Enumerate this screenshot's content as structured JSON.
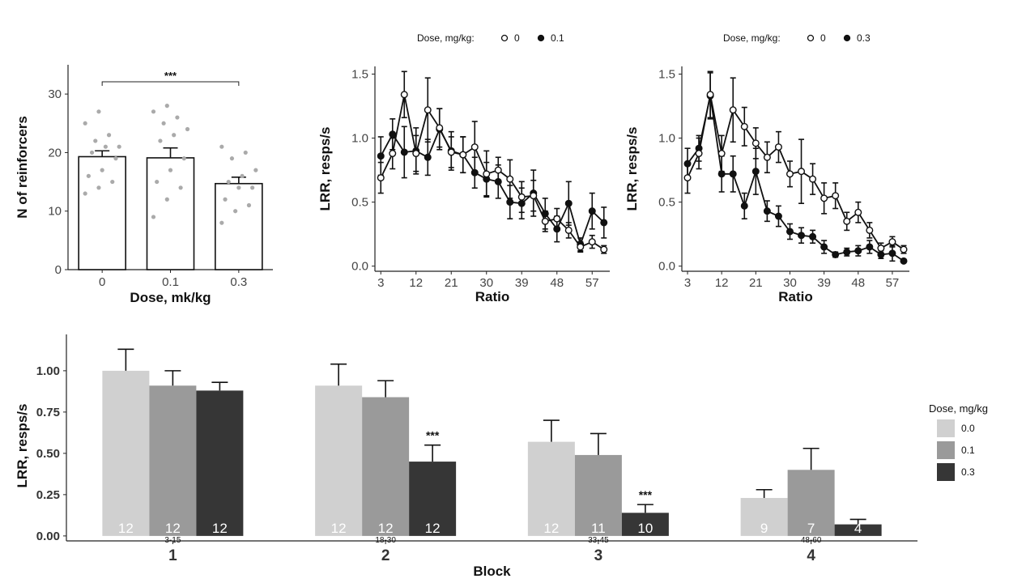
{
  "chart_data": [
    {
      "id": "reinforcers",
      "type": "bar",
      "title": "",
      "xlabel": "Dose, mk/kg",
      "ylabel": "N of reinforcers",
      "ylim": [
        0,
        35
      ],
      "yticks": [
        "0",
        "10",
        "20",
        "30"
      ],
      "categories": [
        "0",
        "0.1",
        "0.3"
      ],
      "values": [
        19.3,
        19.1,
        14.7
      ],
      "sem": [
        1.0,
        1.7,
        1.1
      ],
      "points": [
        [
          13,
          14,
          15,
          16,
          17,
          19,
          20,
          21,
          21,
          22,
          23,
          25,
          27
        ],
        [
          9,
          12,
          14,
          15,
          17,
          19,
          22,
          23,
          24,
          25,
          26,
          27,
          28
        ],
        [
          8,
          10,
          11,
          12,
          14,
          14,
          15,
          16,
          17,
          19,
          20,
          21
        ]
      ],
      "significance": {
        "from": "0",
        "to": "0.3",
        "label": "***"
      }
    },
    {
      "id": "ratio01",
      "type": "line",
      "title": "",
      "xlabel": "Ratio",
      "ylabel": "LRR, resps/s",
      "ylim": [
        -0.04,
        1.56
      ],
      "xlim": [
        1.5,
        61.5
      ],
      "xticks": [
        "3",
        "12",
        "21",
        "30",
        "39",
        "48",
        "57"
      ],
      "yticks": [
        "0.0",
        "0.5",
        "1.0",
        "1.5"
      ],
      "legend_title": "Dose, mg/kg:",
      "legend_position": "top",
      "x": [
        3,
        6,
        9,
        12,
        15,
        18,
        21,
        24,
        27,
        30,
        33,
        36,
        39,
        42,
        45,
        48,
        51,
        54,
        57,
        60
      ],
      "series": [
        {
          "name": "0",
          "marker": "open",
          "values": [
            0.69,
            0.88,
            1.34,
            0.88,
            1.22,
            1.08,
            0.89,
            0.87,
            0.93,
            0.72,
            0.75,
            0.68,
            0.54,
            0.55,
            0.35,
            0.37,
            0.28,
            0.15,
            0.19,
            0.13
          ],
          "err": [
            0.12,
            0.12,
            0.18,
            0.14,
            0.25,
            0.15,
            0.12,
            0.14,
            0.2,
            0.18,
            0.1,
            0.15,
            0.12,
            0.12,
            0.08,
            0.08,
            0.06,
            0.04,
            0.05,
            0.03
          ]
        },
        {
          "name": "0.1",
          "marker": "filled",
          "values": [
            0.86,
            1.03,
            0.89,
            0.9,
            0.85,
            1.07,
            0.9,
            0.87,
            0.73,
            0.68,
            0.66,
            0.5,
            0.49,
            0.57,
            0.41,
            0.29,
            0.49,
            0.17,
            0.43,
            0.34
          ],
          "err": [
            0.15,
            0.12,
            0.2,
            0.18,
            0.14,
            0.16,
            0.15,
            0.14,
            0.12,
            0.13,
            0.13,
            0.13,
            0.12,
            0.18,
            0.12,
            0.1,
            0.17,
            0.05,
            0.14,
            0.12
          ]
        }
      ]
    },
    {
      "id": "ratio03",
      "type": "line",
      "title": "",
      "xlabel": "Ratio",
      "ylabel": "LRR, resps/s",
      "ylim": [
        -0.04,
        1.56
      ],
      "xlim": [
        1.5,
        61.5
      ],
      "xticks": [
        "3",
        "12",
        "21",
        "30",
        "39",
        "48",
        "57"
      ],
      "yticks": [
        "0.0",
        "0.5",
        "1.0",
        "1.5"
      ],
      "legend_title": "Dose, mg/kg:",
      "legend_position": "top",
      "x": [
        3,
        6,
        9,
        12,
        15,
        18,
        21,
        24,
        27,
        30,
        33,
        36,
        39,
        42,
        45,
        48,
        51,
        54,
        57,
        60
      ],
      "series": [
        {
          "name": "0",
          "marker": "open",
          "values": [
            0.69,
            0.88,
            1.34,
            0.88,
            1.22,
            1.09,
            0.96,
            0.85,
            0.93,
            0.72,
            0.74,
            0.68,
            0.53,
            0.55,
            0.35,
            0.42,
            0.28,
            0.14,
            0.19,
            0.13
          ],
          "err": [
            0.12,
            0.12,
            0.18,
            0.14,
            0.25,
            0.15,
            0.12,
            0.12,
            0.12,
            0.1,
            0.25,
            0.12,
            0.12,
            0.1,
            0.07,
            0.08,
            0.06,
            0.04,
            0.04,
            0.03
          ]
        },
        {
          "name": "0.3",
          "marker": "filled",
          "values": [
            0.8,
            0.92,
            1.33,
            0.72,
            0.72,
            0.47,
            0.74,
            0.43,
            0.39,
            0.27,
            0.24,
            0.23,
            0.15,
            0.09,
            0.11,
            0.12,
            0.15,
            0.09,
            0.1,
            0.04
          ],
          "err": [
            0.12,
            0.1,
            0.18,
            0.14,
            0.14,
            0.1,
            0.18,
            0.08,
            0.08,
            0.06,
            0.06,
            0.05,
            0.05,
            0.02,
            0.03,
            0.04,
            0.05,
            0.03,
            0.06,
            0.01
          ]
        }
      ]
    },
    {
      "id": "blocks",
      "type": "bar",
      "title": "",
      "xlabel": "Block",
      "ylabel": "LRR, resps/s",
      "ylim": [
        -0.03,
        1.22
      ],
      "yticks": [
        "0.00",
        "0.25",
        "0.50",
        "0.75",
        "1.00"
      ],
      "categories": [
        "1",
        "2",
        "3",
        "4"
      ],
      "ranges": [
        "3-15",
        "18-30",
        "33-45",
        "48-60"
      ],
      "legend_title": "Dose, mg/kg",
      "legend_position": "right",
      "series": [
        {
          "name": "0.0",
          "color": "#d0d0d0",
          "values": [
            1.0,
            0.91,
            0.57,
            0.23
          ],
          "err": [
            0.13,
            0.13,
            0.13,
            0.05
          ],
          "n": [
            "12",
            "12",
            "12",
            "9"
          ]
        },
        {
          "name": "0.1",
          "color": "#9a9a9a",
          "values": [
            0.91,
            0.84,
            0.49,
            0.4
          ],
          "err": [
            0.09,
            0.1,
            0.13,
            0.13
          ],
          "n": [
            "12",
            "12",
            "11",
            "7"
          ]
        },
        {
          "name": "0.3",
          "color": "#363636",
          "values": [
            0.88,
            0.45,
            0.14,
            0.07
          ],
          "err": [
            0.05,
            0.1,
            0.05,
            0.03
          ],
          "n": [
            "12",
            "12",
            "10",
            "4"
          ]
        }
      ],
      "significance": [
        {
          "block": "2",
          "series": "0.3",
          "label": "***"
        },
        {
          "block": "3",
          "series": "0.3",
          "label": "***"
        }
      ]
    }
  ]
}
